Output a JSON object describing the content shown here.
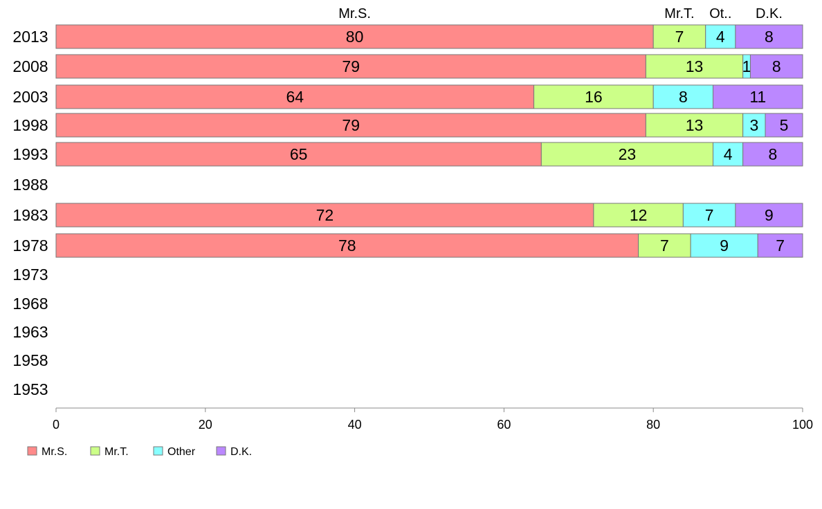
{
  "chart_data": {
    "type": "bar",
    "orientation": "horizontal",
    "stacked": true,
    "categories": [
      "2013",
      "2008",
      "2003",
      "1998",
      "1993",
      "1988",
      "1983",
      "1978",
      "1973",
      "1968",
      "1963",
      "1958",
      "1953"
    ],
    "series": [
      {
        "name": "Mr.S.",
        "color": "#ff8a8a",
        "values": [
          80,
          79,
          64,
          79,
          65,
          null,
          72,
          78,
          null,
          null,
          null,
          null,
          null
        ]
      },
      {
        "name": "Mr.T.",
        "color": "#ccff88",
        "values": [
          7,
          13,
          16,
          13,
          23,
          null,
          12,
          7,
          null,
          null,
          null,
          null,
          null
        ]
      },
      {
        "name": "Other",
        "color": "#88ffff",
        "values": [
          4,
          1,
          8,
          3,
          4,
          null,
          7,
          9,
          null,
          null,
          null,
          null,
          null
        ]
      },
      {
        "name": "D.K.",
        "color": "#bb88ff",
        "values": [
          8,
          8,
          11,
          5,
          8,
          null,
          9,
          7,
          null,
          null,
          null,
          null,
          null
        ]
      }
    ],
    "segment_labels": [
      [
        "80",
        "79",
        "64",
        "79",
        "65",
        "",
        "72",
        "78",
        "",
        "",
        "",
        "",
        ""
      ],
      [
        "7",
        "13",
        "16",
        "13",
        "23",
        "",
        "12",
        "7",
        "",
        "",
        "",
        "",
        ""
      ],
      [
        "4",
        "1",
        "8",
        "3",
        "4",
        "",
        "7",
        "9",
        "",
        "",
        "",
        "",
        ""
      ],
      [
        "8",
        "8",
        "11",
        "5",
        "8",
        "",
        "9",
        "7",
        "",
        "",
        "",
        "",
        ""
      ]
    ],
    "top_labels": [
      "Mr.S.",
      "Mr.T.",
      "Ot..",
      "D.K."
    ],
    "xlim": [
      0,
      100
    ],
    "xticks": [
      0,
      20,
      40,
      60,
      80,
      100
    ],
    "grid": false,
    "legend": {
      "position": "bottom-left",
      "entries": [
        "Mr.S.",
        "Mr.T.",
        "Other",
        "D.K."
      ]
    },
    "title": "",
    "xlabel": "",
    "ylabel": ""
  }
}
